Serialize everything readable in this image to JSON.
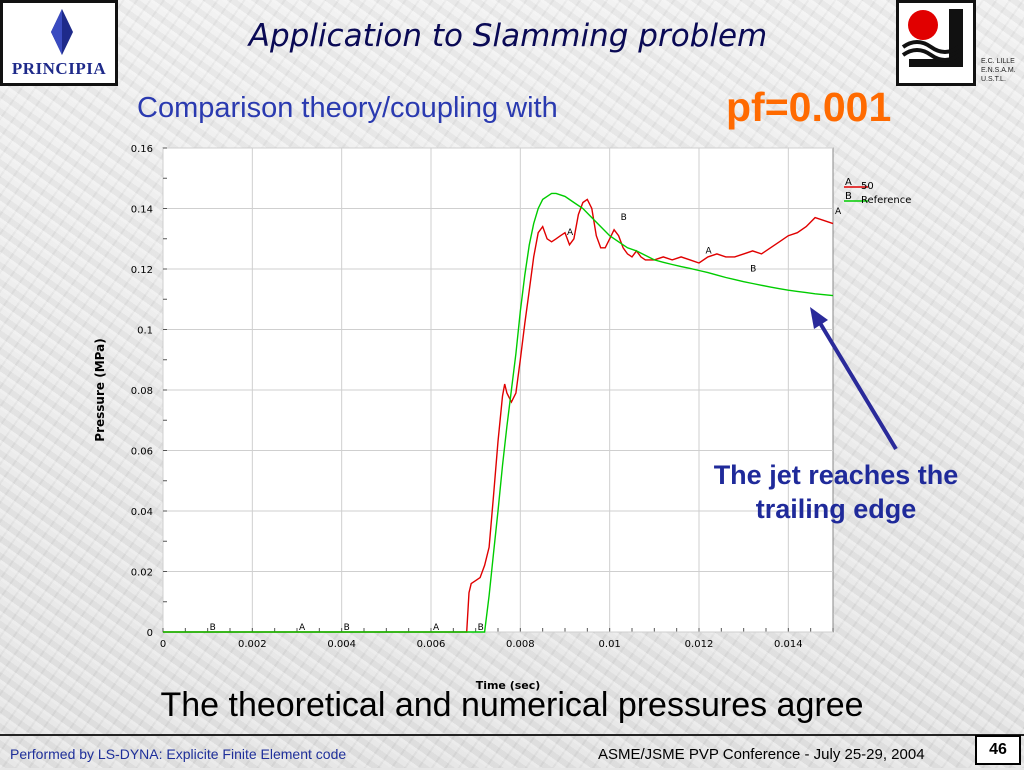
{
  "slide": {
    "title": "Application to Slamming problem",
    "subtitle": "Comparison theory/coupling with",
    "highlight": "pf=0.001",
    "annotation_line1": "The jet reaches the",
    "annotation_line2": "trailing edge",
    "bottom_text": "The theoretical and numerical pressures agree",
    "footer_left": "Performed by LS-DYNA: Explicite Finite Element code",
    "footer_right": "ASME/JSME PVP Conference - July 25-29, 2004",
    "page_number": "46",
    "logo_left": "PRINCIPIA",
    "logo_right_lines": [
      "E.C. LILLE",
      "E.N.S.A.M.",
      "U.S.T.L."
    ]
  },
  "colors": {
    "title": "#0a0a55",
    "subtitle": "#2a3ab0",
    "highlight": "#ff6a00",
    "annotation": "#1f2a9a",
    "arrow": "#2a2a9a",
    "series_a": "#e00000",
    "series_b": "#00cc00"
  },
  "chart_data": {
    "type": "line",
    "xlabel": "Time (sec)",
    "ylabel": "Pressure (MPa)",
    "xlim": [
      0,
      0.015
    ],
    "ylim": [
      0,
      0.16
    ],
    "x_ticks": [
      "0",
      "0.002",
      "0.004",
      "0.006",
      "0.008",
      "0.01",
      "0.012",
      "0.014"
    ],
    "y_ticks": [
      "0",
      "0.02",
      "0.04",
      "0.06",
      "0.08",
      "0.1",
      "0.12",
      "0.14",
      "0.16"
    ],
    "grid": true,
    "legend_position": "top-right",
    "series": [
      {
        "name": "50",
        "marker_letter": "A",
        "color": "#e00000",
        "x": [
          0,
          0.0068,
          0.00685,
          0.0069,
          0.007,
          0.0071,
          0.0072,
          0.0073,
          0.0074,
          0.0075,
          0.0076,
          0.00765,
          0.0077,
          0.0078,
          0.0079,
          0.008,
          0.0081,
          0.0082,
          0.0083,
          0.0084,
          0.0085,
          0.0086,
          0.0087,
          0.0088,
          0.0089,
          0.009,
          0.0091,
          0.0092,
          0.0093,
          0.0094,
          0.0095,
          0.0096,
          0.0097,
          0.0098,
          0.0099,
          0.01,
          0.0101,
          0.0102,
          0.0103,
          0.0104,
          0.0105,
          0.0106,
          0.0107,
          0.0108,
          0.011,
          0.0112,
          0.0114,
          0.0116,
          0.0118,
          0.012,
          0.0122,
          0.0124,
          0.0126,
          0.0128,
          0.013,
          0.0132,
          0.0134,
          0.0136,
          0.0138,
          0.014,
          0.0142,
          0.0144,
          0.0146,
          0.0148,
          0.015
        ],
        "y": [
          0,
          0,
          0.013,
          0.016,
          0.017,
          0.018,
          0.022,
          0.028,
          0.045,
          0.063,
          0.078,
          0.082,
          0.079,
          0.076,
          0.079,
          0.09,
          0.102,
          0.113,
          0.124,
          0.132,
          0.134,
          0.13,
          0.129,
          0.13,
          0.131,
          0.132,
          0.128,
          0.13,
          0.138,
          0.142,
          0.143,
          0.14,
          0.131,
          0.127,
          0.127,
          0.13,
          0.133,
          0.131,
          0.127,
          0.125,
          0.124,
          0.126,
          0.124,
          0.123,
          0.123,
          0.124,
          0.123,
          0.124,
          0.123,
          0.122,
          0.124,
          0.125,
          0.124,
          0.124,
          0.125,
          0.126,
          0.125,
          0.127,
          0.129,
          0.131,
          0.132,
          0.134,
          0.137,
          0.136,
          0.135
        ]
      },
      {
        "name": "Reference",
        "marker_letter": "B",
        "color": "#00cc00",
        "x": [
          0,
          0.0072,
          0.0073,
          0.0074,
          0.0075,
          0.0076,
          0.0077,
          0.0078,
          0.0079,
          0.008,
          0.0081,
          0.0082,
          0.0083,
          0.0084,
          0.0085,
          0.0086,
          0.0087,
          0.0088,
          0.0089,
          0.009,
          0.0092,
          0.0094,
          0.0096,
          0.0098,
          0.01,
          0.0102,
          0.0104,
          0.0106,
          0.0108,
          0.011,
          0.0112,
          0.0114,
          0.0116,
          0.0118,
          0.012,
          0.0122,
          0.0124,
          0.0126,
          0.0128,
          0.013,
          0.0132,
          0.0134,
          0.0136,
          0.0138,
          0.014,
          0.0142,
          0.0144,
          0.0146,
          0.0148,
          0.015
        ],
        "y": [
          0,
          0,
          0.012,
          0.026,
          0.04,
          0.055,
          0.068,
          0.08,
          0.092,
          0.106,
          0.118,
          0.128,
          0.135,
          0.14,
          0.143,
          0.144,
          0.145,
          0.145,
          0.1445,
          0.144,
          0.142,
          0.14,
          0.137,
          0.134,
          0.131,
          0.129,
          0.127,
          0.126,
          0.1245,
          0.123,
          0.1222,
          0.1215,
          0.1208,
          0.1202,
          0.1195,
          0.1188,
          0.118,
          0.1172,
          0.1165,
          0.1158,
          0.1152,
          0.1146,
          0.114,
          0.1135,
          0.113,
          0.1126,
          0.1122,
          0.1118,
          0.1115,
          0.1112
        ]
      }
    ],
    "marker_labels": [
      {
        "letter": "B",
        "x": 0.001,
        "y": 0
      },
      {
        "letter": "A",
        "x": 0.003,
        "y": 0
      },
      {
        "letter": "B",
        "x": 0.004,
        "y": 0
      },
      {
        "letter": "A",
        "x": 0.006,
        "y": 0
      },
      {
        "letter": "B",
        "x": 0.007,
        "y": 0
      },
      {
        "letter": "A",
        "x": 0.009,
        "y": 0.1305
      },
      {
        "letter": "B",
        "x": 0.0102,
        "y": 0.1355
      },
      {
        "letter": "A",
        "x": 0.0121,
        "y": 0.1245
      },
      {
        "letter": "B",
        "x": 0.0131,
        "y": 0.1185
      },
      {
        "letter": "A",
        "x": 0.015,
        "y": 0.1375
      }
    ]
  }
}
